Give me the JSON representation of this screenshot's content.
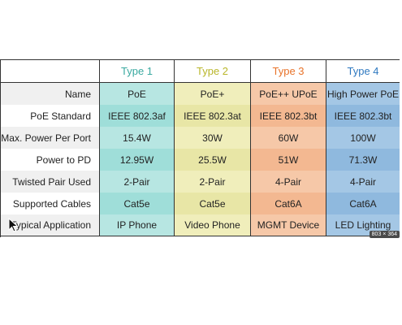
{
  "columns": [
    {
      "label": "Type 1",
      "color": "#3aa9a0"
    },
    {
      "label": "Type 2",
      "color": "#b9b62a"
    },
    {
      "label": "Type 3",
      "color": "#e8732a"
    },
    {
      "label": "Type 4",
      "color": "#2f79c0"
    }
  ],
  "rows": [
    {
      "label": "Name",
      "values": [
        "PoE",
        "PoE+",
        "PoE++ UPoE",
        "High Power PoE"
      ]
    },
    {
      "label": "PoE Standard",
      "values": [
        "IEEE 802.3af",
        "IEEE 802.3at",
        "IEEE 802.3bt",
        "IEEE 802.3bt"
      ]
    },
    {
      "label": "Max. Power Per Port",
      "values": [
        "15.4W",
        "30W",
        "60W",
        "100W"
      ]
    },
    {
      "label": "Power to PD",
      "values": [
        "12.95W",
        "25.5W",
        "51W",
        "71.3W"
      ]
    },
    {
      "label": "Twisted Pair Used",
      "values": [
        "2-Pair",
        "2-Pair",
        "4-Pair",
        "4-Pair"
      ]
    },
    {
      "label": "Supported Cables",
      "values": [
        "Cat5e",
        "Cat5e",
        "Cat6A",
        "Cat6A"
      ]
    },
    {
      "label": "Typical Application",
      "values": [
        "IP Phone",
        "Video Phone",
        "MGMT Device",
        "LED Lighting"
      ]
    }
  ],
  "badge": "803 × 364"
}
